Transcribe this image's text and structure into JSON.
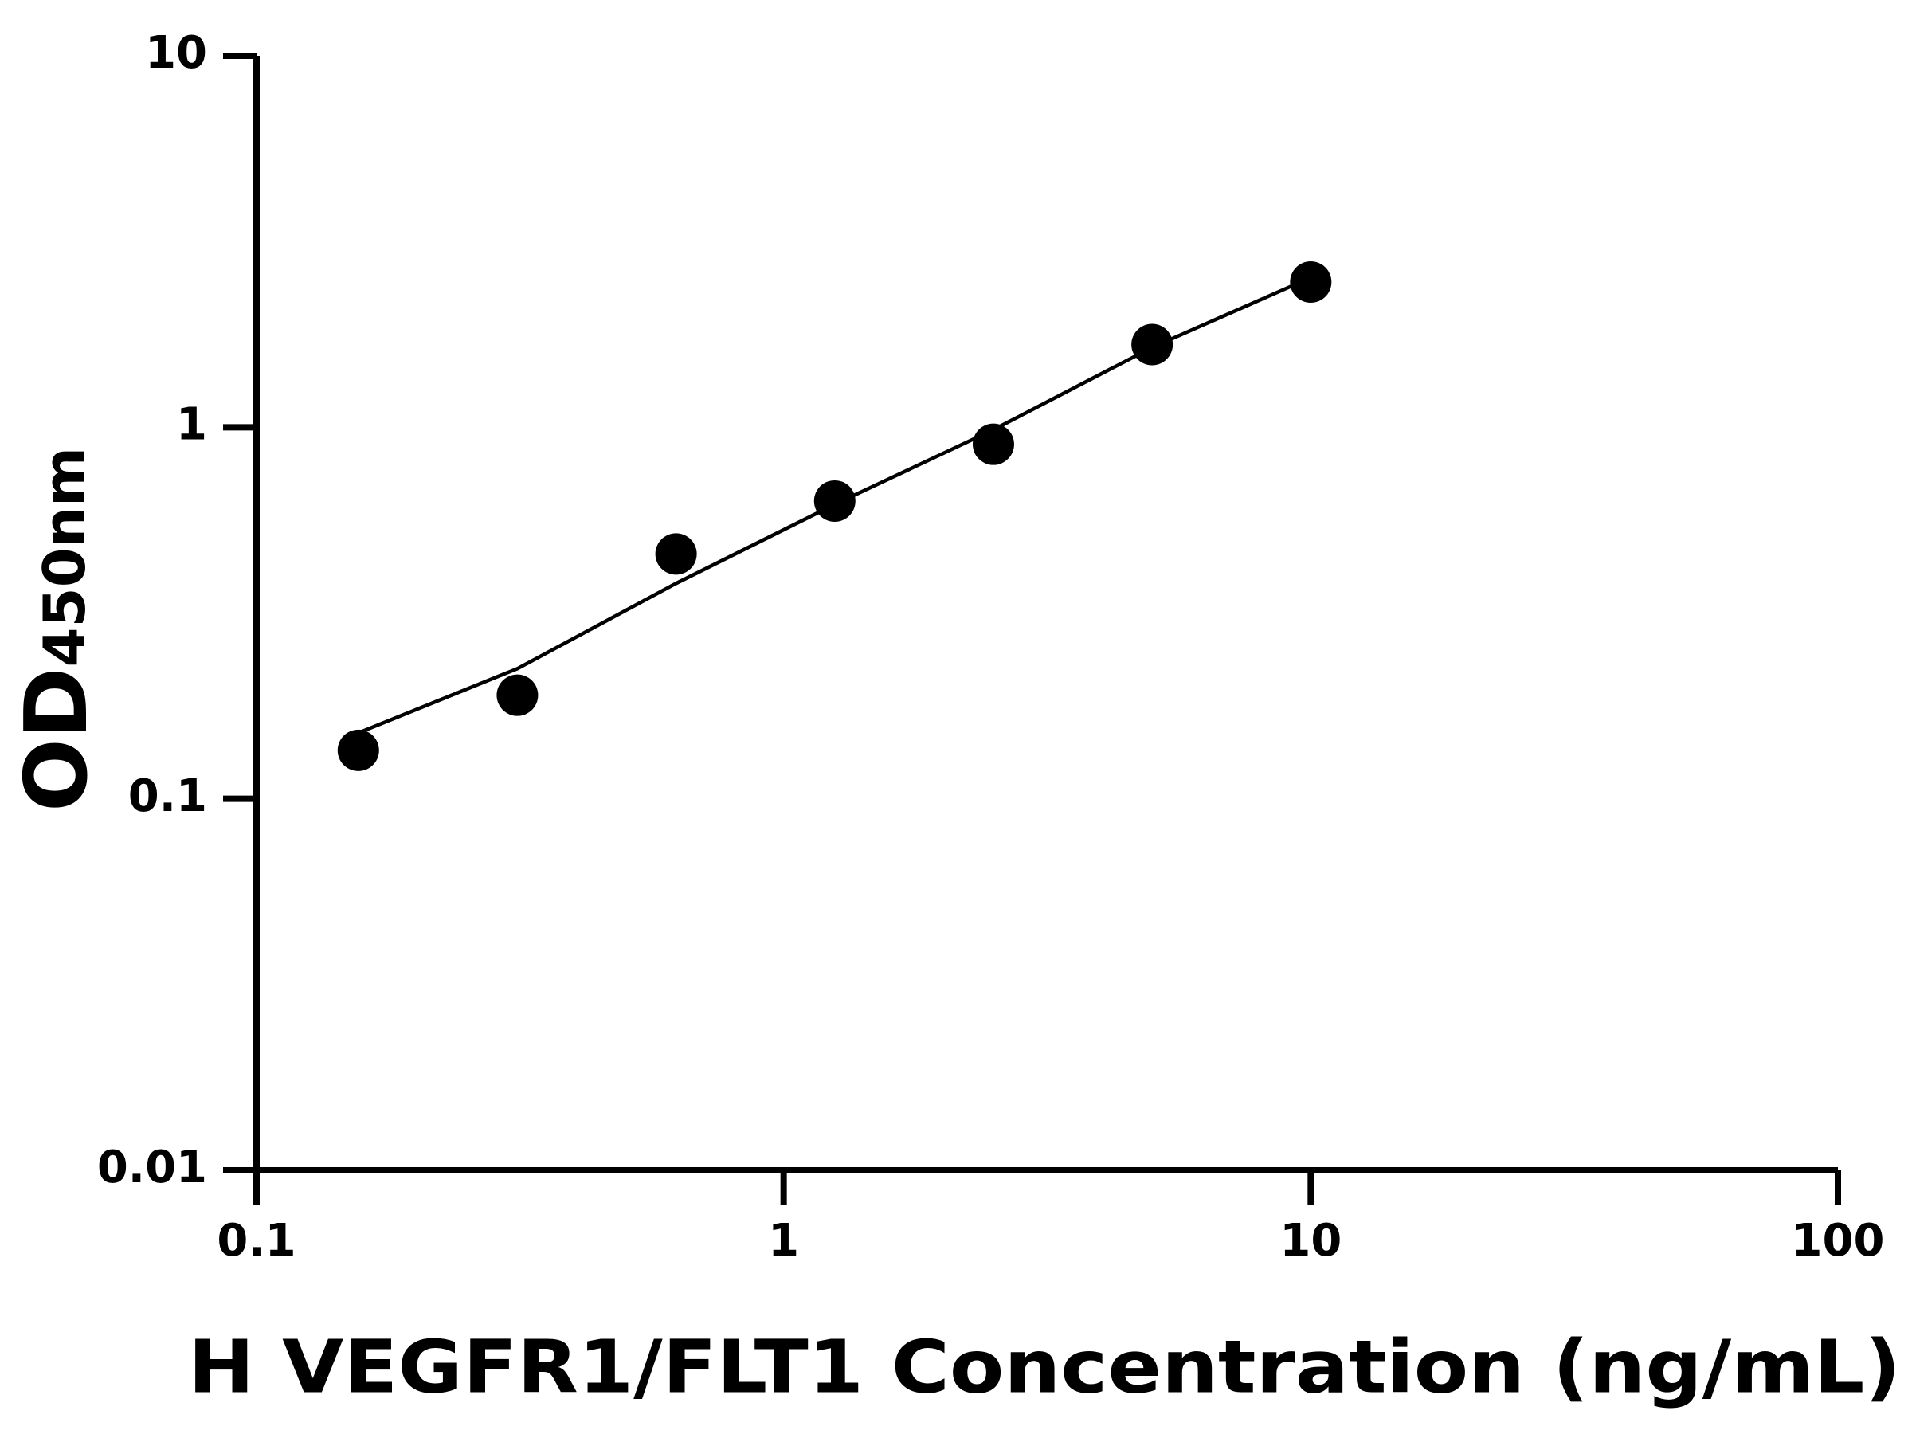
{
  "chart_data": {
    "type": "scatter",
    "xlabel": "H VEGFR1/FLT1 Concentration (ng/mL)",
    "ylabel": "OD",
    "ylabel_sub": "450nm",
    "xscale": "log",
    "yscale": "log",
    "xlim": [
      0.1,
      100
    ],
    "xticks": [
      0.1,
      1,
      10,
      100
    ],
    "ylim": [
      0.01,
      10
    ],
    "yticks": [
      0.01,
      0.1,
      1,
      10
    ],
    "color": "#000000",
    "x": [
      0.156,
      0.3125,
      0.625,
      1.25,
      2.5,
      5,
      10
    ],
    "values": [
      0.135,
      0.19,
      0.456,
      0.633,
      0.9,
      1.67,
      2.46
    ],
    "fit": {
      "x": [
        0.15,
        0.3125,
        0.625,
        1.25,
        2.5,
        5,
        9.2
      ],
      "values": [
        0.147,
        0.224,
        0.38,
        0.62,
        0.985,
        1.64,
        2.4
      ]
    }
  }
}
